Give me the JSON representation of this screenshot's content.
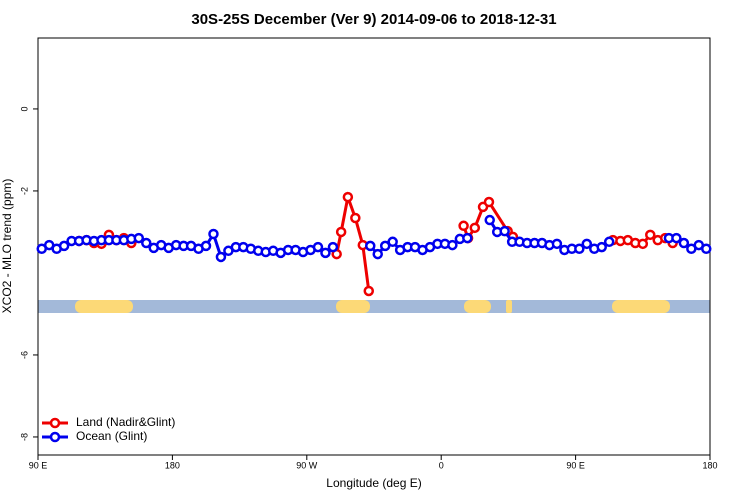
{
  "chart_data": {
    "type": "line",
    "title": "30S-25S December (Ver 9)   2014-09-06 to 2018-12-31",
    "x_label": "Longitude (deg E)",
    "y_label": "XCO2 - MLO trend (ppm)",
    "xlim": [
      90,
      540
    ],
    "xticks": [
      {
        "value": 90,
        "label": "90 E"
      },
      180,
      {
        "value": 270,
        "label": "90 W"
      },
      {
        "value": 360,
        "label": "0"
      },
      {
        "value": 450,
        "label": "90 E"
      },
      {
        "value": 540,
        "label": "180"
      }
    ],
    "ylim": [
      -8.44,
      1.73
    ],
    "yticks": [
      0,
      -2,
      -6,
      -8
    ],
    "legend": "bottom-left",
    "series": [
      {
        "name": "Land (Nadir&Glint)",
        "color": "#ee0000",
        "x": [
          117.5,
          122.5,
          127.5,
          132.5,
          137.5,
          142.5,
          147.5,
          152.5,
          200,
          290,
          293,
          297.5,
          302.5,
          307.5,
          311.5,
          350,
          375,
          378,
          382.5,
          388,
          392,
          404.5,
          408,
          450,
          475,
          480,
          485,
          490,
          495,
          500,
          505,
          510,
          515
        ],
        "values": [
          -3.22,
          -3.2,
          -3.27,
          -3.29,
          -3.07,
          -3.2,
          -3.15,
          -3.27,
          null,
          -3.54,
          -3.0,
          -2.15,
          -2.66,
          -3.32,
          -4.44,
          null,
          -2.85,
          -3.15,
          -2.9,
          -2.39,
          -2.27,
          -2.98,
          -3.12,
          null,
          -3.2,
          -3.22,
          -3.2,
          -3.27,
          -3.29,
          -3.07,
          -3.2,
          -3.15,
          -3.27
        ]
      },
      {
        "name": "Ocean (Glint)",
        "color": "#0000ee",
        "x": [
          92.5,
          97.5,
          102.5,
          107.5,
          112.5,
          117.5,
          122.5,
          127.5,
          132.5,
          137.5,
          142.5,
          147.5,
          152.5,
          157.5,
          162.5,
          167.5,
          172.5,
          177.5,
          182.5,
          187.5,
          192.5,
          197.5,
          202.5,
          207.5,
          212.5,
          217.5,
          222.5,
          227.5,
          232.5,
          237.5,
          242.5,
          247.5,
          252.5,
          257.5,
          262.5,
          267.5,
          272.5,
          277.5,
          282.5,
          287.5,
          292.5,
          297.5,
          302.5,
          307.5,
          312.5,
          317.5,
          322.5,
          327.5,
          332.5,
          337.5,
          342.5,
          347.5,
          352.5,
          357.5,
          362.5,
          367.5,
          372.5,
          377.5,
          382.5,
          387.5,
          392.5,
          397.5,
          402.5,
          407.5,
          412.5,
          417.5,
          422.5,
          427.5,
          432.5,
          437.5,
          442.5,
          447.5,
          452.5,
          457.5,
          462.5,
          467.5,
          472.5,
          477.5,
          482.5,
          487.5,
          492.5,
          497.5,
          502.5,
          507.5,
          512.5,
          517.5,
          522.5,
          527.5,
          532.5,
          537.5
        ],
        "values": [
          -3.41,
          -3.32,
          -3.41,
          -3.34,
          -3.22,
          -3.22,
          -3.2,
          -3.22,
          -3.2,
          -3.2,
          -3.2,
          -3.2,
          -3.17,
          -3.15,
          -3.27,
          -3.39,
          -3.32,
          -3.39,
          -3.32,
          -3.34,
          -3.34,
          -3.41,
          -3.34,
          -3.05,
          -3.61,
          -3.46,
          -3.37,
          -3.37,
          -3.41,
          -3.46,
          -3.49,
          -3.46,
          -3.51,
          -3.44,
          -3.44,
          -3.49,
          -3.44,
          -3.37,
          -3.51,
          -3.37,
          null,
          null,
          null,
          null,
          -3.34,
          -3.54,
          -3.34,
          -3.24,
          -3.44,
          -3.37,
          -3.37,
          -3.44,
          -3.37,
          -3.29,
          -3.29,
          -3.32,
          -3.17,
          -3.15,
          null,
          null,
          -2.71,
          -3.0,
          -2.98,
          -3.24,
          -3.24,
          -3.27,
          -3.27,
          -3.27,
          -3.32,
          -3.29,
          -3.44,
          -3.41,
          -3.41,
          -3.29,
          -3.41,
          -3.37,
          -3.24,
          null,
          null,
          null,
          null,
          null,
          null,
          null,
          -3.15,
          -3.15,
          -3.27,
          -3.41,
          -3.32,
          -3.41
        ]
      }
    ]
  }
}
